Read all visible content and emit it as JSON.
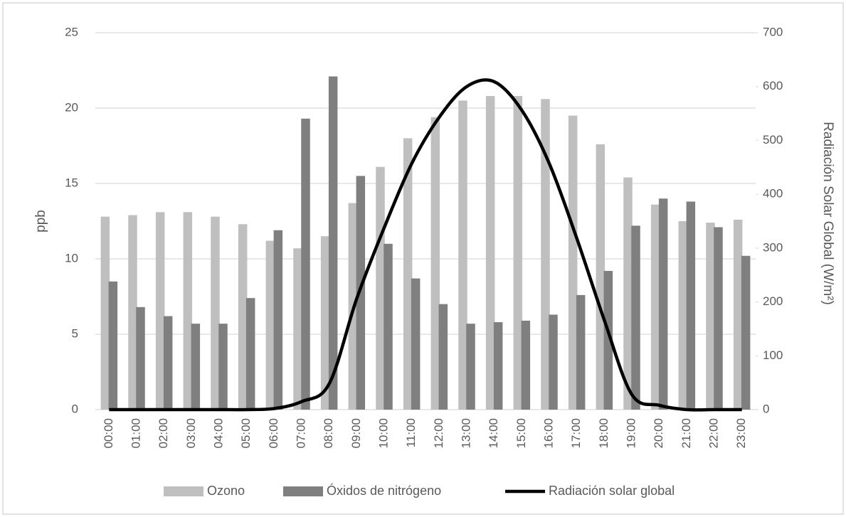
{
  "chart_data": {
    "type": "bar",
    "y_label": "ppb",
    "y2_label": "Radiación Solar Global (W/m²)",
    "categories": [
      "00:00",
      "01:00",
      "02:00",
      "03:00",
      "04:00",
      "05:00",
      "06:00",
      "07:00",
      "08:00",
      "09:00",
      "10:00",
      "11:00",
      "12:00",
      "13:00",
      "14:00",
      "15:00",
      "16:00",
      "17:00",
      "18:00",
      "19:00",
      "20:00",
      "21:00",
      "22:00",
      "23:00"
    ],
    "series": [
      {
        "name": "Ozono",
        "type": "bar",
        "color": "#bfbfbf",
        "values": [
          12.8,
          12.9,
          13.1,
          13.1,
          12.8,
          12.3,
          11.2,
          10.7,
          11.5,
          13.7,
          16.1,
          18.0,
          19.4,
          20.5,
          20.8,
          20.8,
          20.6,
          19.5,
          17.6,
          15.4,
          13.6,
          12.5,
          12.4,
          12.6
        ]
      },
      {
        "name": "Óxidos de nitrógeno",
        "type": "bar",
        "color": "#7f7f7f",
        "values": [
          8.5,
          6.8,
          6.2,
          5.7,
          5.7,
          7.4,
          11.9,
          19.3,
          22.1,
          15.5,
          11.0,
          8.7,
          7.0,
          5.7,
          5.8,
          5.9,
          6.3,
          7.6,
          9.2,
          12.2,
          14.0,
          13.8,
          12.1,
          10.2
        ]
      },
      {
        "name": "Radiación solar global",
        "type": "line",
        "axis": "y2",
        "color": "#000000",
        "values": [
          0,
          0,
          0,
          0,
          0,
          0,
          2,
          15,
          48,
          206,
          338,
          457,
          543,
          600,
          609,
          556,
          457,
          318,
          166,
          28,
          8,
          0,
          0,
          0
        ]
      }
    ],
    "ylim": [
      0,
      25
    ],
    "yticks": [
      0,
      5,
      10,
      15,
      20,
      25
    ],
    "y2lim": [
      0,
      700
    ],
    "y2ticks": [
      0,
      100,
      200,
      300,
      400,
      500,
      600,
      700
    ],
    "grid": true,
    "legend": "bottom"
  }
}
